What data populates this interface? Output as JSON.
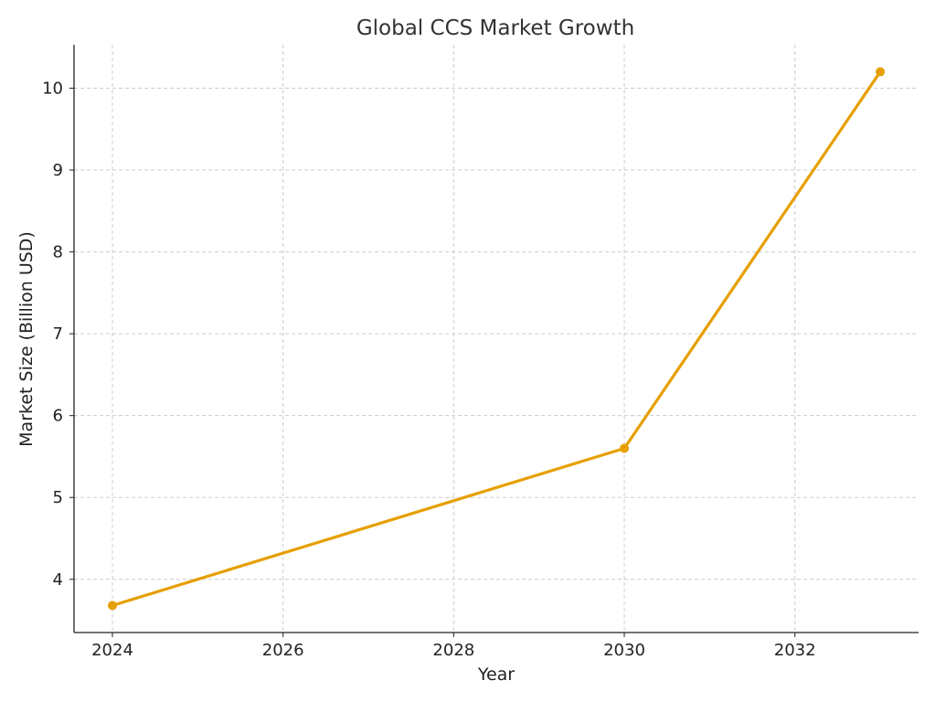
{
  "chart_data": {
    "type": "line",
    "title": "Global CCS Market Growth",
    "xlabel": "Year",
    "ylabel": "Market Size (Billion USD)",
    "x_ticks": [
      2024,
      2026,
      2028,
      2030,
      2032
    ],
    "y_ticks": [
      4,
      5,
      6,
      7,
      8,
      9,
      10
    ],
    "xlim": [
      2023.55,
      2033.45
    ],
    "ylim": [
      3.35,
      10.53
    ],
    "grid": true,
    "series": [
      {
        "color": "#E69F00",
        "points": [
          {
            "x": 2024,
            "y": 3.68
          },
          {
            "x": 2030,
            "y": 5.6
          },
          {
            "x": 2033,
            "y": 10.2
          }
        ]
      }
    ]
  }
}
